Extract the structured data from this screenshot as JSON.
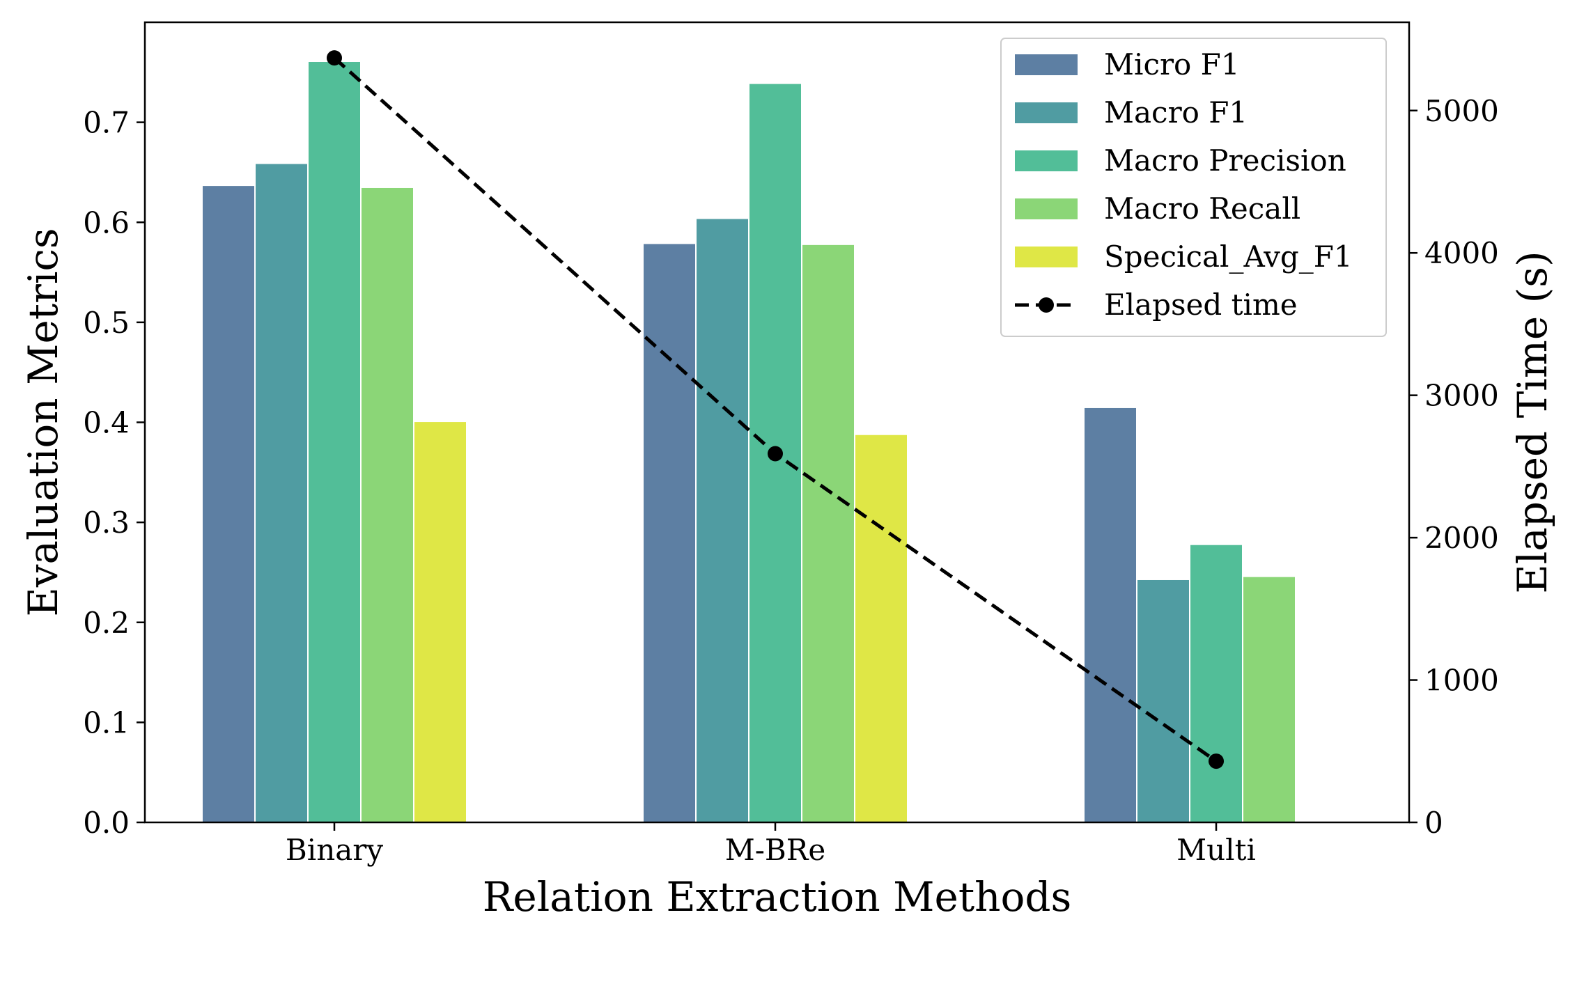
{
  "chart_data": {
    "type": "bar",
    "title": "",
    "xlabel": "Relation Extraction Methods",
    "ylabel": "Evaluation Metrics",
    "y2label": "Elapsed Time (s)",
    "categories": [
      "Binary",
      "M-BRe",
      "Multi"
    ],
    "ylim": [
      0,
      0.8
    ],
    "y2lim": [
      0,
      5620
    ],
    "yticks": [
      "0.0",
      "0.1",
      "0.2",
      "0.3",
      "0.4",
      "0.5",
      "0.6",
      "0.7"
    ],
    "y2ticks": [
      "0",
      "1000",
      "2000",
      "3000",
      "4000",
      "5000"
    ],
    "series": [
      {
        "name": "Micro F1",
        "color": "#5d7fa3",
        "values": [
          0.637,
          0.579,
          0.415
        ]
      },
      {
        "name": "Macro F1",
        "color": "#509ca2",
        "values": [
          0.659,
          0.604,
          0.243
        ]
      },
      {
        "name": "Macro Precision",
        "color": "#52be98",
        "values": [
          0.761,
          0.739,
          0.278
        ]
      },
      {
        "name": "Macro Recall",
        "color": "#8bd677",
        "values": [
          0.635,
          0.578,
          0.246
        ]
      },
      {
        "name": "Specical_Avg_F1",
        "color": "#dfe746",
        "values": [
          0.401,
          0.388,
          null
        ]
      }
    ],
    "line_series": {
      "name": "Elapsed time",
      "color": "#000000",
      "style": "dashed",
      "marker": "circle",
      "axis": "right",
      "values": [
        5370,
        2590,
        430
      ]
    },
    "legend_position": "top-right",
    "grid": false
  }
}
